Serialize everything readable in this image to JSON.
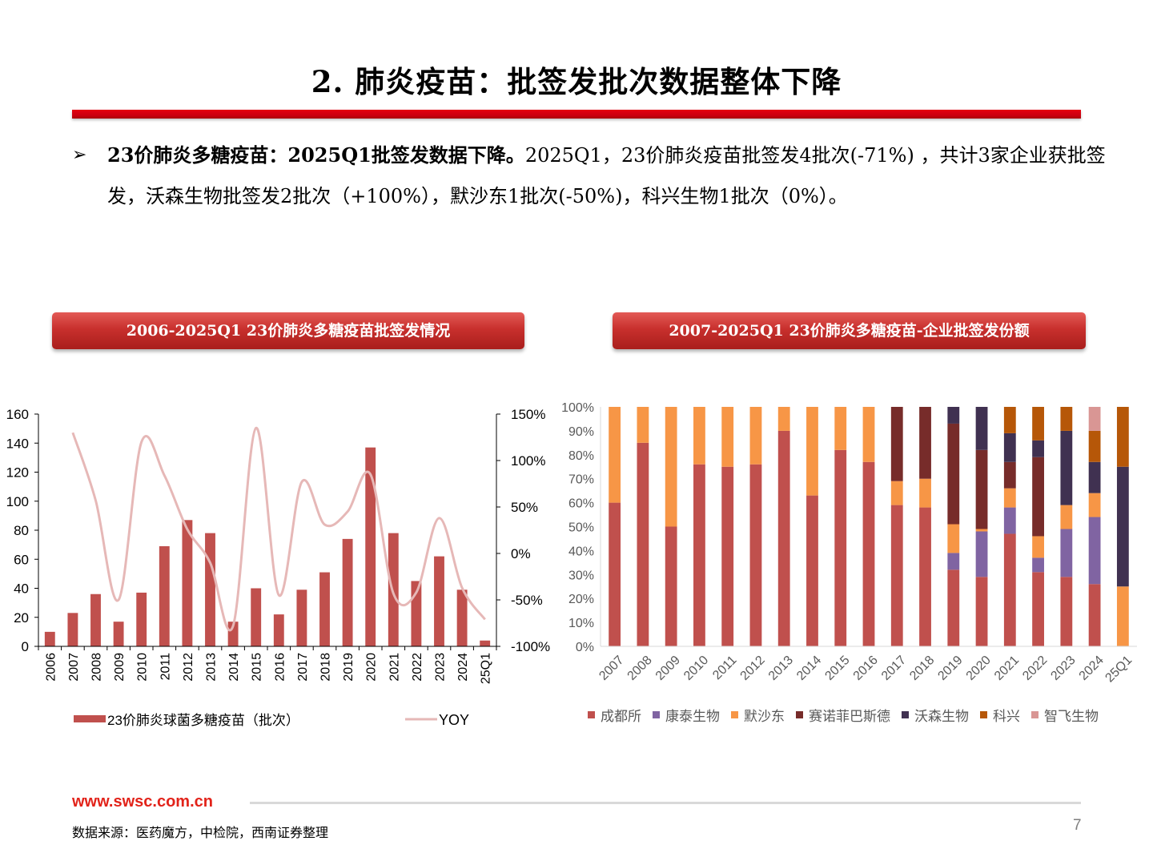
{
  "page": {
    "title": "2. 肺炎疫苗：批签发批次数据整体下降",
    "bullet_bold": "23价肺炎多糖疫苗：2025Q1批签发数据下降。",
    "bullet_text": "2025Q1，23价肺炎疫苗批签发4批次(-71%) ，共计3家企业获批签发，沃森生物批签发2批次（+100%），默沙东1批次(-50%)，科兴生物1批次（0%）。",
    "footer_url": "www.swsc.com.cn",
    "source": "数据来源：医药魔方，中检院，西南证券整理",
    "page_number": "7",
    "colors": {
      "brand_red": "#e60012",
      "header_red": "#c0302d"
    }
  },
  "chart_data": [
    {
      "type": "bar",
      "header": "2006-2025Q1 23价肺炎多糖疫苗批签发情况",
      "categories": [
        "2006",
        "2007",
        "2008",
        "2009",
        "2010",
        "2011",
        "2012",
        "2013",
        "2014",
        "2015",
        "2016",
        "2017",
        "2018",
        "2019",
        "2020",
        "2021",
        "2022",
        "2023",
        "2024",
        "25Q1"
      ],
      "y_ticks": [
        "0",
        "20",
        "40",
        "60",
        "80",
        "100",
        "120",
        "140",
        "160"
      ],
      "y2_ticks": [
        "-100%",
        "-50%",
        "0%",
        "50%",
        "100%",
        "150%"
      ],
      "ylim": [
        0,
        160
      ],
      "y2lim": [
        -100,
        150
      ],
      "series": [
        {
          "name": "23价肺炎球菌多糖疫苗（批次）",
          "kind": "bar",
          "color": "#c0504d",
          "values": [
            10,
            23,
            36,
            17,
            37,
            69,
            87,
            78,
            17,
            40,
            22,
            39,
            51,
            74,
            137,
            78,
            45,
            62,
            39,
            4
          ]
        },
        {
          "name": "YOY",
          "kind": "line",
          "color": "#e6b8b7",
          "values": [
            null,
            130,
            57,
            -50,
            120,
            84,
            26,
            -10,
            -78,
            135,
            -45,
            77,
            31,
            45,
            85,
            -43,
            -42,
            38,
            -37,
            -71
          ]
        }
      ],
      "grid": false,
      "legend": "bottom"
    },
    {
      "type": "bar",
      "stacked": true,
      "header": "2007-2025Q1 23价肺炎多糖疫苗-企业批签发份额",
      "categories": [
        "2007",
        "2008",
        "2009",
        "2010",
        "2011",
        "2012",
        "2013",
        "2014",
        "2015",
        "2016",
        "2017",
        "2018",
        "2019",
        "2020",
        "2021",
        "2022",
        "2023",
        "2024",
        "25Q1"
      ],
      "y_ticks": [
        "0%",
        "10%",
        "20%",
        "30%",
        "40%",
        "50%",
        "60%",
        "70%",
        "80%",
        "90%",
        "100%"
      ],
      "ylim": [
        0,
        100
      ],
      "series": [
        {
          "name": "成都所",
          "color": "#c0504d",
          "values": [
            60,
            85,
            50,
            76,
            75,
            76,
            90,
            63,
            82,
            77,
            59,
            58,
            32,
            29,
            47,
            31,
            29,
            26,
            0
          ]
        },
        {
          "name": "康泰生物",
          "color": "#8064a2",
          "values": [
            0,
            0,
            0,
            0,
            0,
            0,
            0,
            0,
            0,
            0,
            0,
            0,
            7,
            19,
            11,
            6,
            20,
            28,
            0
          ]
        },
        {
          "name": "默沙东",
          "color": "#f79646",
          "values": [
            40,
            15,
            50,
            24,
            25,
            24,
            10,
            37,
            18,
            23,
            10,
            12,
            12,
            1,
            8,
            9,
            10,
            10,
            25
          ]
        },
        {
          "name": "赛诺菲巴斯德",
          "color": "#772c2a",
          "values": [
            0,
            0,
            0,
            0,
            0,
            0,
            0,
            0,
            0,
            0,
            31,
            30,
            42,
            33,
            11,
            33,
            0,
            0,
            0
          ]
        },
        {
          "name": "沃森生物",
          "color": "#403151",
          "values": [
            0,
            0,
            0,
            0,
            0,
            0,
            0,
            0,
            0,
            0,
            0,
            0,
            7,
            18,
            12,
            7,
            31,
            13,
            50
          ]
        },
        {
          "name": "科兴",
          "color": "#b65708",
          "values": [
            0,
            0,
            0,
            0,
            0,
            0,
            0,
            0,
            0,
            0,
            0,
            0,
            0,
            0,
            11,
            14,
            10,
            13,
            25
          ]
        },
        {
          "name": "智飞生物",
          "color": "#d99694",
          "values": [
            0,
            0,
            0,
            0,
            0,
            0,
            0,
            0,
            0,
            0,
            0,
            0,
            0,
            0,
            0,
            0,
            0,
            10,
            0
          ]
        }
      ],
      "grid": false,
      "legend": "bottom"
    }
  ]
}
